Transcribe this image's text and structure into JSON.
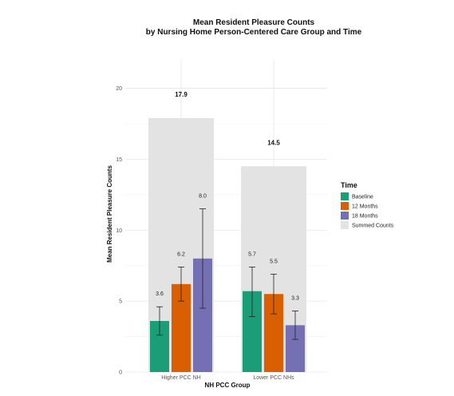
{
  "chart_data": {
    "type": "bar",
    "title": "Mean Resident Pleasure Counts",
    "subtitle": "by Nursing Home Person-Centered Care Group and Time",
    "xlabel": "NH PCC Group",
    "ylabel": "Mean Resident Pleasure Counts",
    "categories": [
      "Higher PCC NH",
      "Lower PCC NHs"
    ],
    "ylim": [
      0,
      22
    ],
    "yticks": [
      0,
      5,
      10,
      15,
      20
    ],
    "ytick_labels": [
      "0",
      "5",
      "10",
      "15",
      "20"
    ],
    "grid": true,
    "legend": {
      "title": "Time",
      "position": "right"
    },
    "background_series": {
      "name": "Summed Counts",
      "color": "#e3e3e3",
      "values": [
        17.9,
        14.5
      ],
      "labels": [
        "17.9",
        "14.5"
      ]
    },
    "series": [
      {
        "name": "Baseline",
        "color": "#1b9e77",
        "values": [
          3.6,
          5.7
        ],
        "labels": [
          "3.6",
          "5.7"
        ],
        "err_low": [
          2.6,
          3.9
        ],
        "err_high": [
          4.6,
          7.4
        ]
      },
      {
        "name": "12 Months",
        "color": "#d95f02",
        "values": [
          6.2,
          5.5
        ],
        "labels": [
          "6.2",
          "5.5"
        ],
        "err_low": [
          5.0,
          4.1
        ],
        "err_high": [
          7.4,
          6.9
        ]
      },
      {
        "name": "18 Months",
        "color": "#7570b3",
        "values": [
          8.0,
          3.3
        ],
        "labels": [
          "8.0",
          "3.3"
        ],
        "err_low": [
          4.5,
          2.3
        ],
        "err_high": [
          11.5,
          4.3
        ]
      }
    ]
  }
}
